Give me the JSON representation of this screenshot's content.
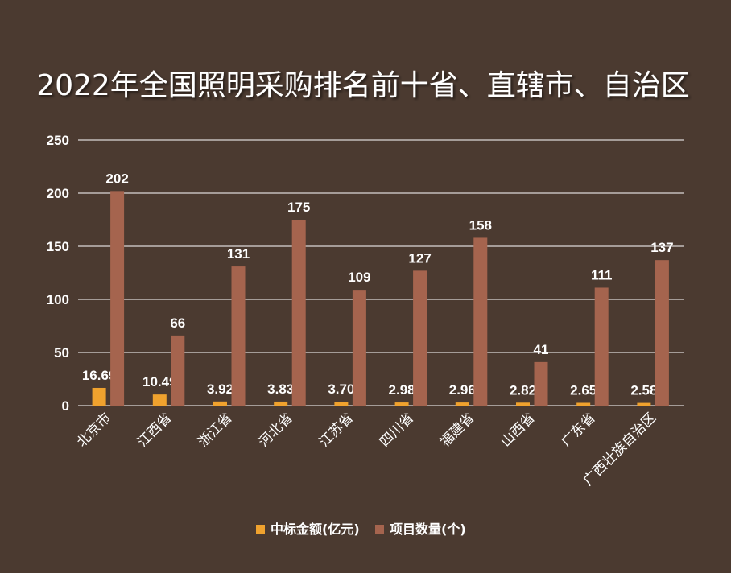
{
  "chart_data": {
    "type": "bar",
    "title": "2022年全国照明采购排名前十省、直辖市、自治区",
    "categories": [
      "北京市",
      "江西省",
      "浙江省",
      "河北省",
      "江苏省",
      "四川省",
      "福建省",
      "山西省",
      "广东省",
      "广西壮族自治区"
    ],
    "series": [
      {
        "name": "中标金额(亿元)",
        "color": "#f0a22e",
        "values": [
          16.69,
          10.49,
          3.92,
          3.83,
          3.7,
          2.98,
          2.96,
          2.82,
          2.65,
          2.58
        ]
      },
      {
        "name": "项目数量(个)",
        "color": "#a5644e",
        "values": [
          202,
          66,
          131,
          175,
          109,
          127,
          158,
          41,
          111,
          137
        ]
      }
    ],
    "value_labels": [
      [
        "16.69",
        "10.49",
        "3.92",
        "3.83",
        "3.70",
        "2.98",
        "2.96",
        "2.82",
        "2.65",
        "2.58"
      ],
      [
        "202",
        "66",
        "131",
        "175",
        "109",
        "127",
        "158",
        "41",
        "111",
        "137"
      ]
    ],
    "ylim": [
      0,
      250
    ],
    "yticks": [
      0,
      50,
      100,
      150,
      200,
      250
    ],
    "grid": true,
    "legend_position": "bottom",
    "background": "#4b3a30"
  }
}
